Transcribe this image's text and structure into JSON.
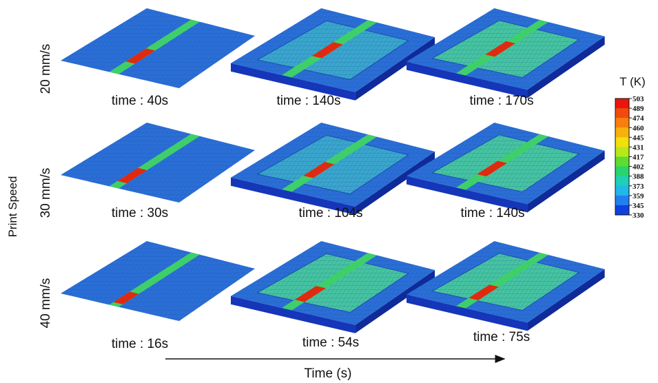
{
  "y_axis_label": "Print Speed",
  "x_axis_label": "Time (s)",
  "rows": [
    {
      "label": "20 mm/s",
      "panels": [
        "time : 40s",
        "time : 140s",
        "time : 170s"
      ]
    },
    {
      "label": "30 mm/s",
      "panels": [
        "time : 30s",
        "time : 104s",
        "time : 140s"
      ]
    },
    {
      "label": "40 mm/s",
      "panels": [
        "time : 16s",
        "time : 54s",
        "time : 75s"
      ]
    }
  ],
  "colorbar": {
    "title": "T (K)",
    "labels": [
      503,
      489,
      474,
      460,
      445,
      431,
      417,
      402,
      388,
      373,
      359,
      345,
      330
    ]
  }
}
